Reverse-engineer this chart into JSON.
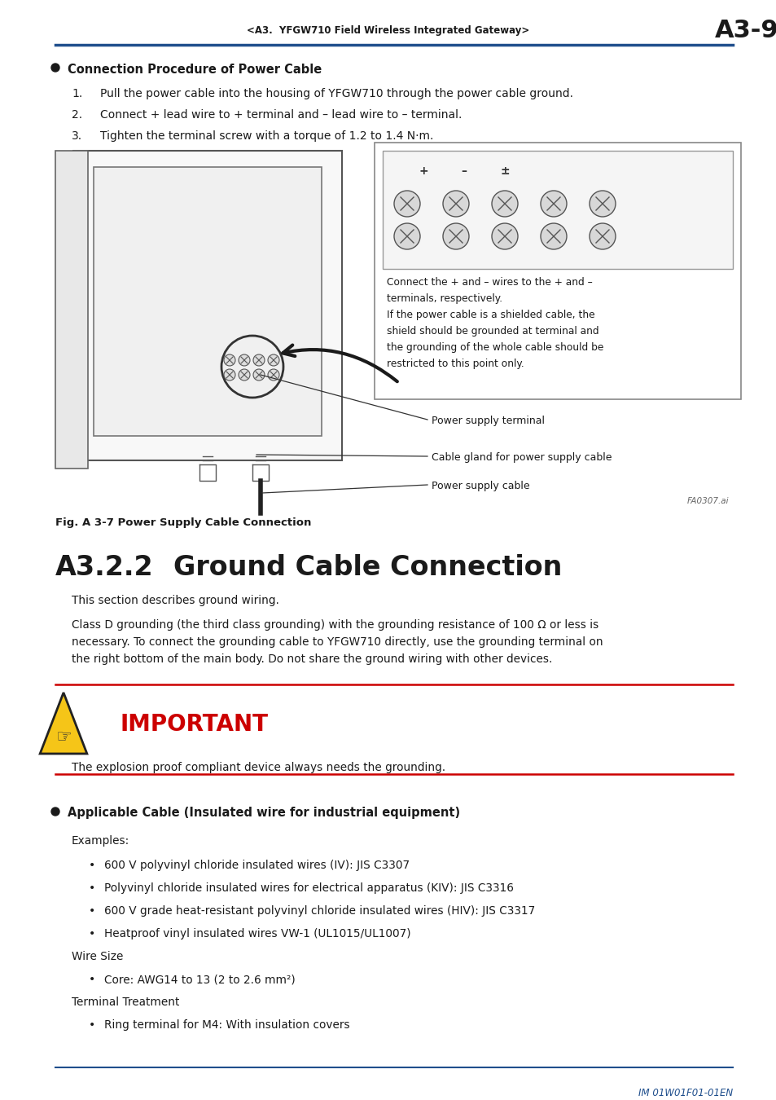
{
  "header_text": "<A3.  YFGW710 Field Wireless Integrated Gateway>",
  "header_page": "A3-9",
  "header_line_color": "#1f4e8c",
  "section_title_bullet": "Connection Procedure of Power Cable",
  "steps": [
    "Pull the power cable into the housing of YFGW710 through the power cable ground.",
    "Connect + lead wire to + terminal and – lead wire to – terminal.",
    "Tighten the terminal screw with a torque of 1.2 to 1.4 N·m."
  ],
  "fig_caption": "Fig. A 3-7 Power Supply Cable Connection",
  "fig_note_label": "FA0307.ai",
  "callout_text": "Connect the + and – wires to the + and –\nterminals, respectively.\nIf the power cable is a shielded cable, the\nshield should be grounded at terminal and\nthe grounding of the whole cable should be\nrestricted to this point only.",
  "label_power_supply_terminal": "Power supply terminal",
  "label_cable_gland": "Cable gland for power supply cable",
  "label_power_supply_cable": "Power supply cable",
  "section_number": "A3.2.2",
  "section_heading": "Ground Cable Connection",
  "para1": "This section describes ground wiring.",
  "para2_lines": [
    "Class D grounding (the third class grounding) with the grounding resistance of 100 Ω or less is",
    "necessary. To connect the grounding cable to YFGW710 directly, use the grounding terminal on",
    "the right bottom of the main body. Do not share the ground wiring with other devices."
  ],
  "important_label": "IMPORTANT",
  "important_text": "The explosion proof compliant device always needs the grounding.",
  "important_line_color": "#cc0000",
  "important_text_color": "#cc0000",
  "bullet2": "Applicable Cable (Insulated wire for industrial equipment)",
  "examples_label": "Examples:",
  "bullet_items": [
    "600 V polyvinyl chloride insulated wires (IV): JIS C3307",
    "Polyvinyl chloride insulated wires for electrical apparatus (KIV): JIS C3316",
    "600 V grade heat-resistant polyvinyl chloride insulated wires (HIV): JIS C3317",
    "Heatproof vinyl insulated wires VW-1 (UL1015/UL1007)"
  ],
  "wire_size_label": "Wire Size",
  "wire_size_item": "Core: AWG14 to 13 (2 to 2.6 mm²)",
  "terminal_label": "Terminal Treatment",
  "terminal_item": "Ring terminal for M4: With insulation covers",
  "footer_text": "IM 01W01F01-01EN",
  "footer_line_color": "#1f4e8c",
  "bg_color": "#ffffff"
}
